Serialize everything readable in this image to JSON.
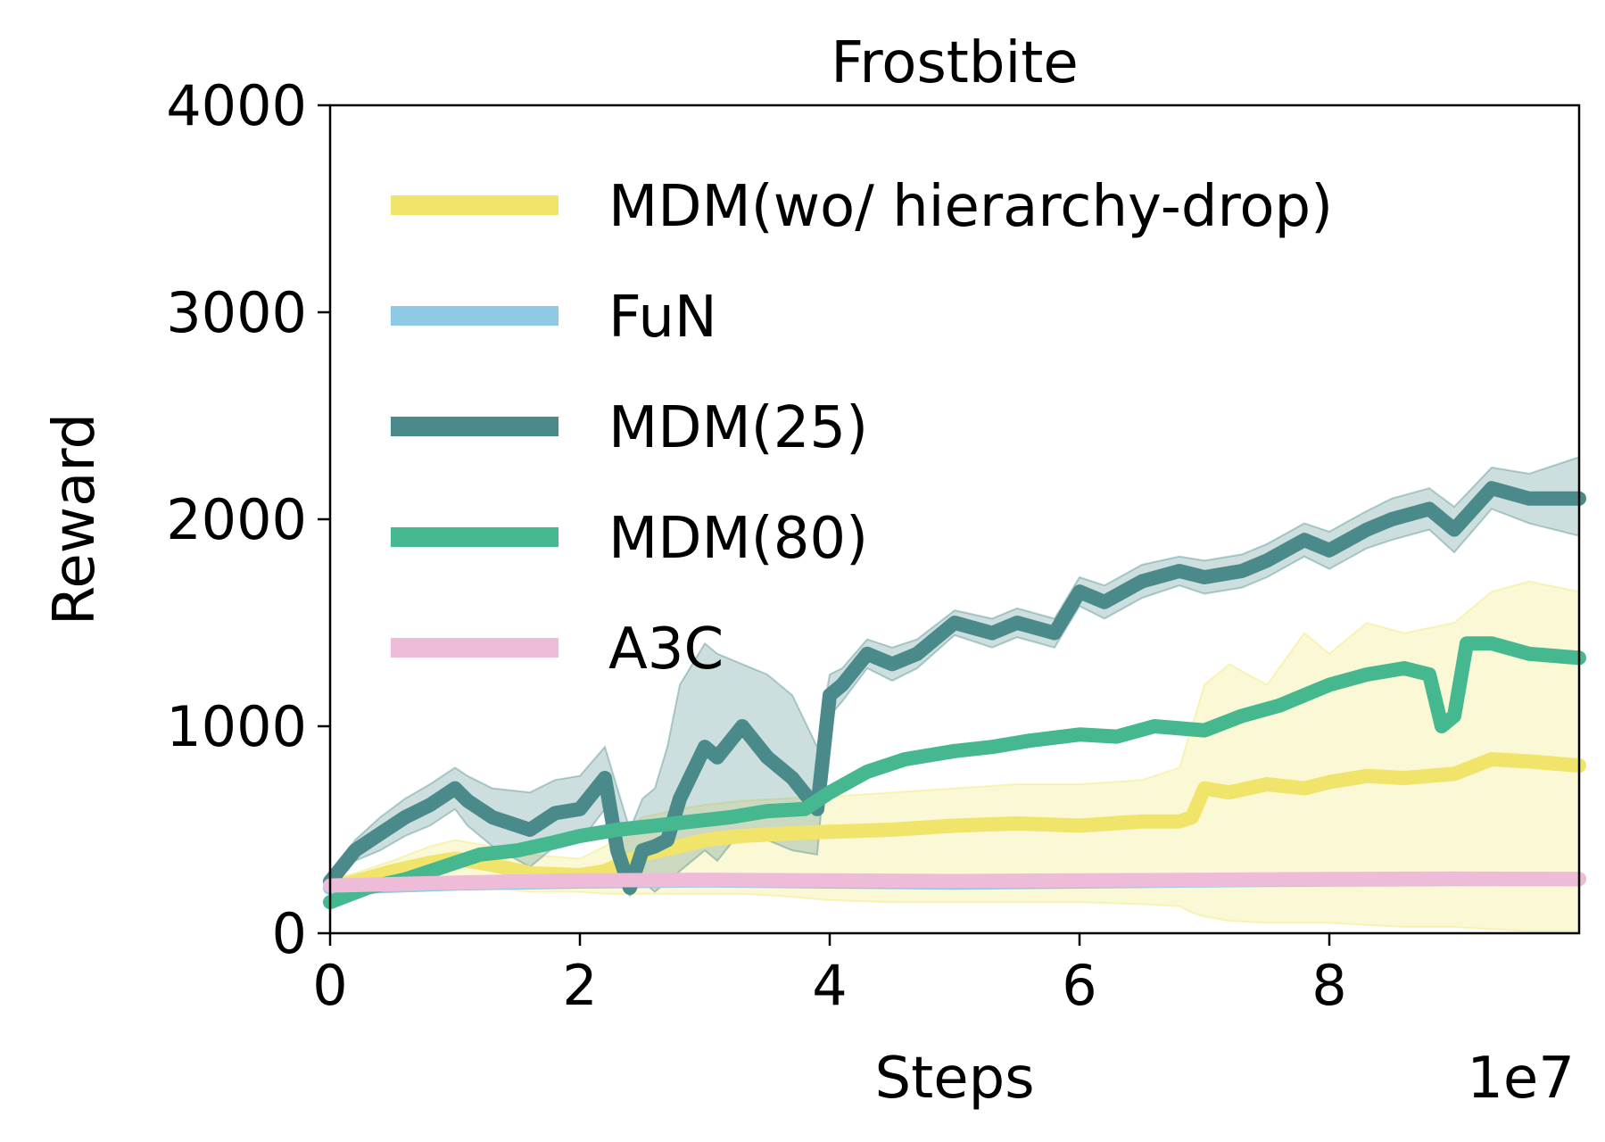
{
  "chart_data": {
    "type": "line",
    "title": "Frostbite",
    "xlabel": "Steps",
    "ylabel": "Reward",
    "x_scale_label": "1e7",
    "xlim": [
      0,
      10
    ],
    "ylim": [
      0,
      4000
    ],
    "x_ticks": [
      0,
      2,
      4,
      6,
      8
    ],
    "x_tick_labels": [
      "0",
      "2",
      "4",
      "6",
      "8"
    ],
    "y_ticks": [
      0,
      1000,
      2000,
      3000,
      4000
    ],
    "y_tick_labels": [
      "0",
      "1000",
      "2000",
      "3000",
      "4000"
    ],
    "grid": false,
    "legend_position": "upper-left",
    "series": [
      {
        "name": "MDM(wo/ hierarchy-drop)",
        "color": "#f0e56a",
        "x": [
          0,
          0.2,
          0.5,
          0.8,
          1.0,
          1.3,
          1.6,
          2.0,
          2.2,
          2.5,
          2.8,
          3.0,
          3.3,
          3.6,
          4.0,
          4.5,
          5.0,
          5.5,
          6.0,
          6.5,
          6.8,
          6.9,
          7.0,
          7.2,
          7.5,
          7.8,
          8.0,
          8.3,
          8.6,
          9.0,
          9.3,
          9.6,
          10.0
        ],
        "values": [
          220,
          250,
          300,
          340,
          360,
          330,
          290,
          280,
          300,
          380,
          420,
          450,
          470,
          480,
          490,
          500,
          520,
          530,
          520,
          540,
          540,
          560,
          700,
          680,
          720,
          700,
          730,
          760,
          750,
          770,
          840,
          830,
          810
        ],
        "upper": [
          260,
          290,
          350,
          420,
          450,
          420,
          380,
          360,
          420,
          560,
          600,
          620,
          640,
          650,
          660,
          680,
          700,
          720,
          720,
          740,
          800,
          1000,
          1200,
          1300,
          1200,
          1450,
          1350,
          1500,
          1450,
          1500,
          1650,
          1700,
          1650
        ],
        "lower": [
          180,
          200,
          220,
          230,
          240,
          220,
          200,
          200,
          190,
          190,
          190,
          190,
          190,
          180,
          160,
          150,
          150,
          150,
          150,
          140,
          130,
          100,
          80,
          60,
          50,
          50,
          50,
          40,
          30,
          30,
          20,
          10,
          10
        ]
      },
      {
        "name": "FuN",
        "color": "#8ecae6",
        "x": [
          0,
          1,
          2,
          3,
          4,
          5,
          6,
          7,
          8,
          9,
          10
        ],
        "values": [
          220,
          240,
          250,
          255,
          250,
          245,
          250,
          255,
          260,
          262,
          262
        ],
        "upper": [
          235,
          255,
          265,
          270,
          265,
          260,
          265,
          270,
          275,
          277,
          277
        ],
        "lower": [
          205,
          225,
          235,
          240,
          235,
          230,
          235,
          240,
          245,
          247,
          247
        ]
      },
      {
        "name": "MDM(25)",
        "color": "#4a8a8a",
        "x": [
          0,
          0.2,
          0.4,
          0.6,
          0.8,
          1.0,
          1.1,
          1.3,
          1.6,
          1.8,
          2.0,
          2.2,
          2.3,
          2.4,
          2.5,
          2.6,
          2.7,
          2.8,
          3.0,
          3.1,
          3.3,
          3.5,
          3.7,
          3.9,
          4.0,
          4.1,
          4.3,
          4.5,
          4.7,
          5.0,
          5.3,
          5.5,
          5.8,
          6.0,
          6.2,
          6.5,
          6.8,
          7.0,
          7.3,
          7.5,
          7.8,
          8.0,
          8.3,
          8.5,
          8.8,
          9.0,
          9.3,
          9.6,
          10.0
        ],
        "values": [
          250,
          400,
          480,
          560,
          620,
          700,
          640,
          560,
          500,
          580,
          600,
          750,
          400,
          220,
          400,
          420,
          450,
          650,
          900,
          850,
          1000,
          850,
          750,
          600,
          1150,
          1200,
          1350,
          1300,
          1350,
          1500,
          1450,
          1500,
          1450,
          1650,
          1600,
          1700,
          1750,
          1720,
          1750,
          1800,
          1900,
          1850,
          1950,
          2000,
          2050,
          1950,
          2150,
          2100,
          2100
        ],
        "upper": [
          280,
          450,
          560,
          650,
          720,
          800,
          760,
          700,
          680,
          740,
          760,
          900,
          700,
          500,
          650,
          700,
          900,
          1200,
          1400,
          1350,
          1300,
          1250,
          1150,
          900,
          1250,
          1280,
          1420,
          1380,
          1420,
          1560,
          1520,
          1570,
          1520,
          1720,
          1680,
          1780,
          1820,
          1800,
          1830,
          1880,
          1980,
          1940,
          2040,
          2100,
          2150,
          2060,
          2250,
          2220,
          2300
        ],
        "lower": [
          220,
          350,
          400,
          470,
          520,
          600,
          520,
          420,
          320,
          420,
          440,
          600,
          250,
          180,
          250,
          200,
          250,
          300,
          400,
          350,
          500,
          450,
          400,
          380,
          1050,
          1120,
          1280,
          1220,
          1280,
          1440,
          1380,
          1430,
          1380,
          1580,
          1520,
          1620,
          1680,
          1640,
          1670,
          1720,
          1820,
          1760,
          1860,
          1900,
          1950,
          1840,
          2050,
          1980,
          1920
        ]
      },
      {
        "name": "MDM(80)",
        "color": "#45b890",
        "x": [
          0,
          0.3,
          0.6,
          0.9,
          1.2,
          1.5,
          1.8,
          2.0,
          2.3,
          2.6,
          2.9,
          3.2,
          3.5,
          3.8,
          4.0,
          4.3,
          4.6,
          5.0,
          5.3,
          5.6,
          6.0,
          6.3,
          6.6,
          7.0,
          7.3,
          7.6,
          8.0,
          8.3,
          8.6,
          8.8,
          8.9,
          9.0,
          9.1,
          9.3,
          9.6,
          10.0
        ],
        "values": [
          150,
          220,
          260,
          320,
          380,
          400,
          440,
          470,
          500,
          520,
          540,
          560,
          590,
          600,
          680,
          780,
          840,
          880,
          900,
          930,
          960,
          950,
          1000,
          980,
          1050,
          1100,
          1200,
          1250,
          1280,
          1250,
          1000,
          1050,
          1400,
          1400,
          1350,
          1330
        ],
        "upper": [
          170,
          240,
          280,
          340,
          400,
          420,
          460,
          490,
          520,
          540,
          560,
          580,
          610,
          620,
          700,
          800,
          860,
          900,
          920,
          950,
          980,
          970,
          1020,
          1000,
          1070,
          1120,
          1220,
          1270,
          1300,
          1270,
          1020,
          1070,
          1420,
          1420,
          1370,
          1350
        ],
        "lower": [
          130,
          200,
          240,
          300,
          360,
          380,
          420,
          450,
          480,
          500,
          520,
          540,
          570,
          580,
          660,
          760,
          820,
          860,
          880,
          910,
          940,
          930,
          980,
          960,
          1030,
          1080,
          1180,
          1230,
          1260,
          1230,
          980,
          1030,
          1380,
          1380,
          1330,
          1310
        ]
      },
      {
        "name": "A3C",
        "color": "#eebcd8",
        "x": [
          0,
          1,
          2,
          3,
          4,
          5,
          6,
          7,
          8,
          9,
          10
        ],
        "values": [
          230,
          245,
          255,
          258,
          255,
          252,
          255,
          258,
          262,
          264,
          262
        ],
        "upper": [
          245,
          260,
          270,
          273,
          270,
          267,
          270,
          273,
          277,
          279,
          277
        ],
        "lower": [
          215,
          230,
          240,
          243,
          240,
          237,
          240,
          243,
          247,
          249,
          247
        ]
      }
    ]
  }
}
